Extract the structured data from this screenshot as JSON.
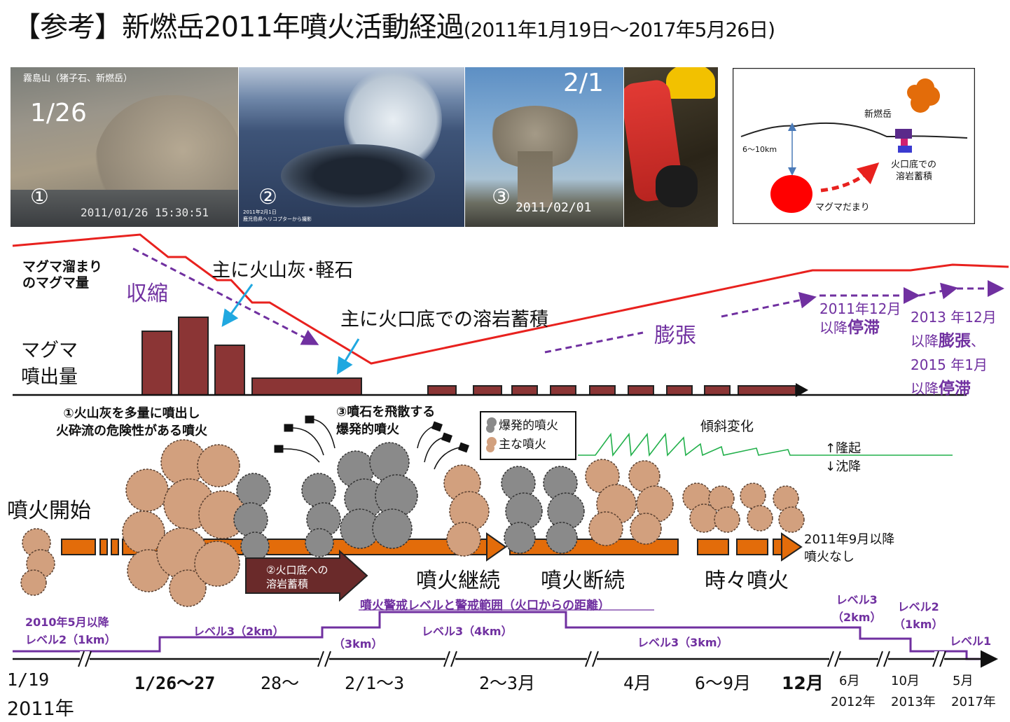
{
  "title": {
    "main": "【参考】新燃岳2011年噴火活動経過",
    "period": "(2011年1月19日～2017年5月26日)"
  },
  "photos": [
    {
      "caption_top": "霧島山（猪子石、新燃岳）",
      "date": "1/26",
      "number": "①",
      "stamp": "2011/01/26 15:30:51"
    },
    {
      "number": "②",
      "stamp_line1": "2011年2月1日",
      "stamp_line2": "鹿児島県ヘリコプターから撮影"
    },
    {
      "date": "2/1",
      "number": "③",
      "stamp": "2011/02/01"
    },
    {}
  ],
  "inset": {
    "volcano": "新燃岳",
    "depth": "6～10km",
    "chamber": "マグマだまり",
    "accumulation": "火口底での\n溶岩蓄積"
  },
  "upper": {
    "magma_amount": "マグマ溜まり\nのマグマ量",
    "contraction": "収縮",
    "ash_pumice": "主に火山灰･軽石",
    "lava_accum": "主に火口底での溶岩蓄積",
    "expansion": "膨張",
    "stagnation_2011_a": "2011年12月",
    "stagnation_2011_b": "以降",
    "stagnation_2011_c": "停滞",
    "note_2013_a": "2013 年12月",
    "note_2013_b": "以降",
    "note_2013_c": "膨張",
    "note_2013_d": "、",
    "note_2015_a": "2015 年1月",
    "note_2015_b": "以降",
    "note_2015_c": "停滞",
    "eruption_volume": "マグマ\n噴出量"
  },
  "middle": {
    "note1": "①火山灰を多量に噴出し\n火砕流の危険性がある噴火",
    "note3": "③噴石を飛散する\n爆発的噴火",
    "legend_explosive": "爆発的噴火",
    "legend_main": "主な噴火",
    "tilt": "傾斜変化",
    "uplift": "↑隆起",
    "subsidence": "↓沈降",
    "start": "噴火開始",
    "lava_box": "②火口底への\n溶岩蓄積",
    "continued": "噴火継続",
    "intermittent": "噴火断続",
    "occasional": "時々噴火",
    "no_eruption": "2011年9月以降\n噴火なし"
  },
  "levels": {
    "heading": "噴火警戒レベルと警戒範囲（火口からの距離）",
    "l2_start": "2010年5月以降\nレベル2（1km）",
    "l3_2km": "レベル3（2km）",
    "l3_3km_a": "（3km）",
    "l3_4km": "レベル3（4km）",
    "l3_3km_b": "レベル3（3km）",
    "l3_2km_b": "レベル3\n（2km）",
    "l2_1km": "レベル2\n（1km）",
    "l1": "レベル1"
  },
  "timeline": {
    "t1": "1/19",
    "t1_year": "2011年",
    "t2": "1/26～27",
    "t3": "28～",
    "t4": "2/1～3",
    "t5": "2～3月",
    "t6": "4月",
    "t7": "6～9月",
    "t8": "12月",
    "t9": "6月",
    "t9_year": "2012年",
    "t10": "10月",
    "t10_year": "2013年",
    "t11": "5月",
    "t11_year": "2017年"
  },
  "colors": {
    "red_line": "#e8211e",
    "bar": "#8b3535",
    "purple": "#7030a0",
    "orange": "#e36c0a",
    "tan": "#d2a07e",
    "gray": "#8a8a8a",
    "green": "#22b04b",
    "cyan": "#20a8e0"
  }
}
